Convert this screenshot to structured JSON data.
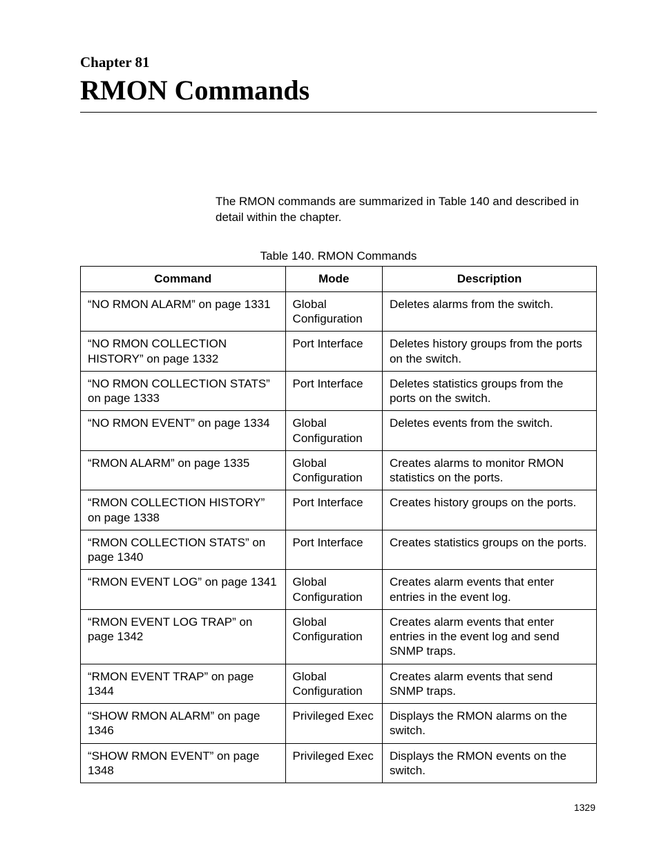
{
  "chapter": {
    "label": "Chapter 81",
    "title": "RMON Commands"
  },
  "intro_text": "The RMON commands are summarized in Table 140 and described in detail within the chapter.",
  "table": {
    "caption": "Table 140. RMON Commands",
    "columns": [
      "Command",
      "Mode",
      "Description"
    ],
    "column_widths_pct": [
      39.7,
      18.8,
      41.5
    ],
    "rows": [
      {
        "command": "“NO RMON ALARM” on page 1331",
        "mode": "Global Configuration",
        "description": "Deletes alarms from the switch."
      },
      {
        "command": "“NO RMON COLLECTION HISTORY” on page 1332",
        "mode": "Port Interface",
        "description": "Deletes history groups from the ports on the switch."
      },
      {
        "command": "“NO RMON COLLECTION STATS” on page 1333",
        "mode": "Port Interface",
        "description": "Deletes statistics groups from the ports on the switch."
      },
      {
        "command": "“NO RMON EVENT” on page 1334",
        "mode": "Global Configuration",
        "description": "Deletes events from the switch."
      },
      {
        "command": "“RMON ALARM” on page 1335",
        "mode": "Global Configuration",
        "description": "Creates alarms to monitor RMON statistics on the ports."
      },
      {
        "command": "“RMON COLLECTION HISTORY” on page 1338",
        "mode": "Port Interface",
        "description": "Creates history groups on the ports."
      },
      {
        "command": "“RMON COLLECTION STATS” on page 1340",
        "mode": "Port Interface",
        "description": "Creates statistics groups on the ports."
      },
      {
        "command": "“RMON EVENT LOG” on page 1341",
        "mode": "Global Configuration",
        "description": "Creates alarm events that enter entries in the event log."
      },
      {
        "command": "“RMON EVENT LOG TRAP” on page 1342",
        "mode": "Global Configuration",
        "description": "Creates alarm events that enter entries in the event log and send SNMP traps."
      },
      {
        "command": "“RMON EVENT TRAP” on page 1344",
        "mode": "Global Configuration",
        "description": "Creates alarm events that send SNMP traps."
      },
      {
        "command": "“SHOW RMON ALARM” on page 1346",
        "mode": "Privileged Exec",
        "description": "Displays the RMON alarms on the switch."
      },
      {
        "command": "“SHOW RMON EVENT” on page 1348",
        "mode": "Privileged Exec",
        "description": "Displays the RMON events on the switch."
      }
    ]
  },
  "page_number": "1329",
  "styling": {
    "background_color": "#ffffff",
    "text_color": "#000000",
    "border_color": "#000000",
    "chapter_label_fontsize": 21,
    "chapter_title_fontsize": 40,
    "body_fontsize": 17,
    "page_number_fontsize": 14,
    "chapter_font_family": "Times New Roman",
    "body_font_family": "Arial"
  }
}
